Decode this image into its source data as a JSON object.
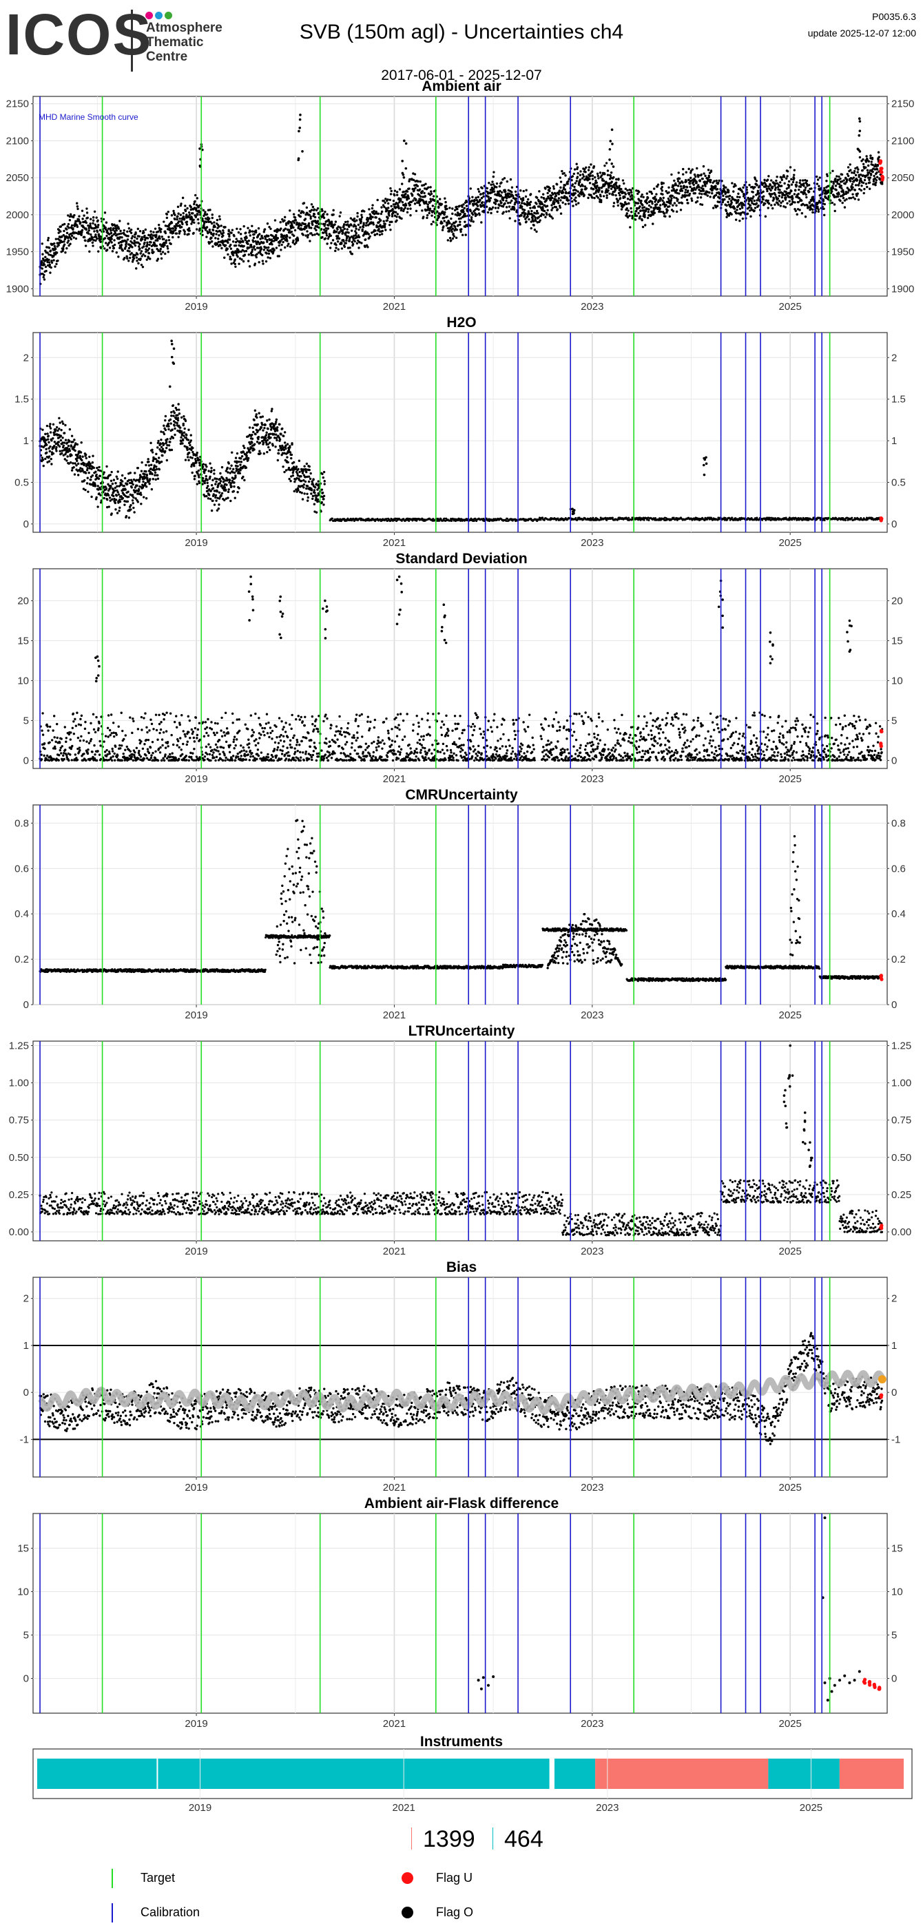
{
  "header": {
    "logo_text": "ICOS",
    "logo_lines": [
      "Atmosphere",
      "Thematic",
      "Centre"
    ],
    "logo_dot_colors": [
      "#e6007e",
      "#1e9bd7",
      "#3aaa35"
    ],
    "title": "SVB  (150m agl) - Uncertainties ch4",
    "subtitle": "2017-06-01 - 2025-12-07",
    "version": "P0035.6.3",
    "update": "update  2025-12-07 12:00"
  },
  "colors": {
    "target_line": "#22dd22",
    "calibration_line": "#1a1acc",
    "flag_u": "#ff1111",
    "flag_o": "#000000",
    "smooth_curve": "#b4b4b4",
    "smooth_end": "#f0a020",
    "instrument_a": "#00bfc4",
    "instrument_b": "#f8766d"
  },
  "chart_data": [
    {
      "type": "scatter",
      "title": "Ambient air",
      "annotation": "MHD Marine Smooth curve",
      "xlabel": "",
      "ylabel": "",
      "x_ticks": [
        "2019",
        "2021",
        "2023",
        "2025"
      ],
      "y_ticks": [
        1900,
        1950,
        2000,
        2050,
        2100,
        2150
      ],
      "ylim": [
        1890,
        2160
      ],
      "series_points": [
        [
          2017.42,
          1930
        ],
        [
          2017.6,
          1960
        ],
        [
          2017.8,
          1990
        ],
        [
          2018.0,
          1975
        ],
        [
          2018.2,
          1970
        ],
        [
          2018.4,
          1955
        ],
        [
          2018.6,
          1960
        ],
        [
          2018.8,
          1990
        ],
        [
          2019.0,
          2000
        ],
        [
          2019.2,
          1975
        ],
        [
          2019.4,
          1955
        ],
        [
          2019.6,
          1960
        ],
        [
          2019.8,
          1965
        ],
        [
          2020.0,
          1985
        ],
        [
          2020.2,
          1995
        ],
        [
          2020.4,
          1975
        ],
        [
          2020.6,
          1975
        ],
        [
          2020.8,
          1990
        ],
        [
          2021.0,
          2010
        ],
        [
          2021.2,
          2030
        ],
        [
          2021.4,
          2010
        ],
        [
          2021.6,
          1990
        ],
        [
          2021.8,
          2010
        ],
        [
          2022.0,
          2030
        ],
        [
          2022.2,
          2020
        ],
        [
          2022.4,
          2000
        ],
        [
          2022.6,
          2020
        ],
        [
          2022.8,
          2040
        ],
        [
          2023.0,
          2045
        ],
        [
          2023.2,
          2040
        ],
        [
          2023.4,
          2010
        ],
        [
          2023.6,
          2010
        ],
        [
          2023.8,
          2025
        ],
        [
          2024.0,
          2040
        ],
        [
          2024.2,
          2040
        ],
        [
          2024.4,
          2015
        ],
        [
          2024.6,
          2020
        ],
        [
          2024.8,
          2030
        ],
        [
          2025.0,
          2035
        ],
        [
          2025.2,
          2020
        ],
        [
          2025.4,
          2030
        ],
        [
          2025.6,
          2040
        ],
        [
          2025.8,
          2060
        ],
        [
          2025.93,
          2055
        ]
      ],
      "series_spread": 45,
      "outliers": [
        [
          2020.05,
          2135
        ],
        [
          2019.05,
          2095
        ],
        [
          2021.1,
          2100
        ],
        [
          2025.7,
          2130
        ],
        [
          2023.2,
          2115
        ]
      ],
      "flag_u_points": [
        [
          2025.92,
          2060
        ],
        [
          2025.93,
          2050
        ],
        [
          2025.91,
          2070
        ]
      ]
    },
    {
      "type": "scatter",
      "title": "H2O",
      "xlabel": "",
      "ylabel": "",
      "x_ticks": [
        "2019",
        "2021",
        "2023",
        "2025"
      ],
      "y_ticks": [
        0.0,
        0.5,
        1.0,
        1.5,
        2.0
      ],
      "ylim": [
        -0.1,
        2.3
      ],
      "series_points": [
        [
          2017.42,
          0.9
        ],
        [
          2017.6,
          1.0
        ],
        [
          2017.8,
          0.8
        ],
        [
          2018.0,
          0.5
        ],
        [
          2018.2,
          0.35
        ],
        [
          2018.4,
          0.4
        ],
        [
          2018.6,
          0.8
        ],
        [
          2018.8,
          1.3
        ],
        [
          2019.0,
          0.7
        ],
        [
          2019.2,
          0.4
        ],
        [
          2019.4,
          0.6
        ],
        [
          2019.6,
          1.1
        ],
        [
          2019.8,
          1.1
        ],
        [
          2020.0,
          0.6
        ],
        [
          2020.2,
          0.4
        ],
        [
          2020.3,
          0.35
        ]
      ],
      "series_spread": 0.45,
      "low_segments": [
        [
          2020.35,
          2021.35,
          0.05
        ],
        [
          2021.35,
          2022.45,
          0.05
        ],
        [
          2022.45,
          2025.93,
          0.06
        ]
      ],
      "outliers": [
        [
          2018.75,
          2.2
        ],
        [
          2024.15,
          0.8
        ],
        [
          2022.8,
          0.18
        ]
      ],
      "flag_u_points": [
        [
          2025.92,
          0.05
        ]
      ]
    },
    {
      "type": "scatter",
      "title": "Standard Deviation",
      "xlabel": "",
      "ylabel": "",
      "x_ticks": [
        "2019",
        "2021",
        "2023",
        "2025"
      ],
      "y_ticks": [
        0,
        5,
        10,
        15,
        20
      ],
      "ylim": [
        -1,
        24
      ],
      "baseline": 0.8,
      "series_spread": 6,
      "outliers": [
        [
          2019.55,
          23
        ],
        [
          2021.05,
          23
        ],
        [
          2019.85,
          20.5
        ],
        [
          2020.3,
          20
        ],
        [
          2025.6,
          17.5
        ],
        [
          2024.3,
          22.5
        ],
        [
          2018.0,
          13
        ],
        [
          2021.5,
          19.5
        ],
        [
          2024.8,
          16
        ]
      ],
      "flag_u_points": [
        [
          2025.92,
          2
        ],
        [
          2025.92,
          3.5
        ]
      ]
    },
    {
      "type": "scatter",
      "title": "CMRUncertainty",
      "xlabel": "",
      "ylabel": "",
      "x_ticks": [
        "2019",
        "2021",
        "2023",
        "2025"
      ],
      "y_ticks": [
        0.0,
        0.2,
        0.4,
        0.6,
        0.8
      ],
      "ylim": [
        0.0,
        0.88
      ],
      "segments": [
        [
          2017.42,
          2019.7,
          0.15
        ],
        [
          2019.7,
          2020.35,
          0.3
        ],
        [
          2020.35,
          2022.1,
          0.165
        ],
        [
          2022.1,
          2022.5,
          0.17
        ],
        [
          2022.5,
          2023.35,
          0.33
        ],
        [
          2023.35,
          2024.35,
          0.11
        ],
        [
          2024.35,
          2024.9,
          0.165
        ],
        [
          2024.9,
          2025.3,
          0.165
        ],
        [
          2025.3,
          2025.93,
          0.12
        ]
      ],
      "bumps": [
        [
          2019.8,
          2020.3,
          0.85
        ],
        [
          2022.55,
          2023.3,
          0.4
        ],
        [
          2025.0,
          2025.1,
          0.77
        ]
      ],
      "flag_u_points": [
        [
          2025.92,
          0.12
        ]
      ]
    },
    {
      "type": "scatter",
      "title": "LTRUncertainty",
      "xlabel": "",
      "ylabel": "",
      "x_ticks": [
        "2019",
        "2021",
        "2023",
        "2025"
      ],
      "y_ticks": [
        "0.00",
        "0.25",
        "0.50",
        "0.75",
        "1.00",
        "1.25"
      ],
      "ylim": [
        -0.06,
        1.28
      ],
      "segments": [
        [
          2017.42,
          2022.7,
          0.17
        ],
        [
          2022.7,
          2024.3,
          0.03
        ],
        [
          2024.3,
          2025.5,
          0.25
        ],
        [
          2025.5,
          2025.93,
          0.05
        ]
      ],
      "series_spread": 0.15,
      "outliers": [
        [
          2025.0,
          1.25
        ],
        [
          2024.95,
          0.95
        ],
        [
          2025.2,
          0.6
        ],
        [
          2025.15,
          0.8
        ]
      ],
      "flag_u_points": [
        [
          2025.92,
          0.03
        ]
      ]
    },
    {
      "type": "line",
      "title": "Bias",
      "xlabel": "",
      "ylabel": "",
      "x_ticks": [
        "2019",
        "2021",
        "2023",
        "2025"
      ],
      "y_ticks": [
        -1,
        0,
        1,
        2
      ],
      "ylim": [
        -1.8,
        2.45
      ],
      "hlines": [
        -1,
        1
      ],
      "smooth_points": [
        [
          2017.42,
          -0.25
        ],
        [
          2018.0,
          -0.05
        ],
        [
          2018.5,
          -0.2
        ],
        [
          2019.0,
          -0.1
        ],
        [
          2019.5,
          -0.25
        ],
        [
          2020.0,
          -0.1
        ],
        [
          2020.5,
          -0.25
        ],
        [
          2021.0,
          -0.1
        ],
        [
          2021.5,
          -0.25
        ],
        [
          2022.0,
          -0.1
        ],
        [
          2022.5,
          -0.3
        ],
        [
          2023.0,
          -0.1
        ],
        [
          2023.5,
          -0.05
        ],
        [
          2024.0,
          0.0
        ],
        [
          2024.5,
          0.05
        ],
        [
          2025.0,
          0.2
        ],
        [
          2025.5,
          0.3
        ],
        [
          2025.93,
          0.28
        ]
      ],
      "bias_points": [
        [
          2017.42,
          -0.3
        ],
        [
          2017.7,
          -0.5
        ],
        [
          2018.0,
          -0.2
        ],
        [
          2018.3,
          -0.4
        ],
        [
          2018.6,
          -0.1
        ],
        [
          2018.9,
          -0.5
        ],
        [
          2019.2,
          -0.3
        ],
        [
          2019.5,
          -0.2
        ],
        [
          2019.8,
          -0.4
        ],
        [
          2020.1,
          -0.2
        ],
        [
          2020.4,
          -0.3
        ],
        [
          2020.7,
          -0.2
        ],
        [
          2021.0,
          -0.4
        ],
        [
          2021.3,
          -0.3
        ],
        [
          2021.6,
          -0.1
        ],
        [
          2021.9,
          -0.3
        ],
        [
          2022.2,
          0.0
        ],
        [
          2022.5,
          -0.4
        ],
        [
          2022.8,
          -0.5
        ],
        [
          2023.1,
          -0.2
        ],
        [
          2023.4,
          -0.2
        ],
        [
          2023.7,
          -0.2
        ],
        [
          2024.0,
          -0.25
        ],
        [
          2024.3,
          -0.2
        ],
        [
          2024.6,
          -0.3
        ],
        [
          2024.8,
          -0.8
        ],
        [
          2025.0,
          0.3
        ],
        [
          2025.2,
          1.0
        ],
        [
          2025.4,
          -0.1
        ],
        [
          2025.7,
          0.0
        ],
        [
          2025.93,
          -0.05
        ]
      ],
      "series_spread": 0.7,
      "smooth_end_point": [
        2025.93,
        0.28
      ],
      "flag_u_points": [
        [
          2025.92,
          -0.08
        ]
      ]
    },
    {
      "type": "scatter",
      "title": "Ambient air-Flask difference",
      "xlabel": "",
      "ylabel": "",
      "x_ticks": [
        "2019",
        "2021",
        "2023",
        "2025"
      ],
      "y_ticks": [
        0,
        5,
        10,
        15
      ],
      "ylim": [
        -4,
        19
      ],
      "points": [
        [
          2021.85,
          -0.2
        ],
        [
          2021.9,
          0.1
        ],
        [
          2021.95,
          -0.8
        ],
        [
          2022.0,
          0.2
        ],
        [
          2021.88,
          -1.2
        ],
        [
          2025.35,
          -0.5
        ],
        [
          2025.4,
          0.0
        ],
        [
          2025.45,
          -0.8
        ],
        [
          2025.5,
          -0.2
        ],
        [
          2025.55,
          0.3
        ],
        [
          2025.6,
          -0.5
        ],
        [
          2025.65,
          -0.2
        ],
        [
          2025.7,
          0.8
        ],
        [
          2025.35,
          18.5
        ],
        [
          2025.33,
          9.3
        ],
        [
          2025.38,
          -2.5
        ],
        [
          2025.42,
          -1.5
        ]
      ],
      "flag_u_points": [
        [
          2025.75,
          -0.3
        ],
        [
          2025.8,
          -0.6
        ],
        [
          2025.85,
          -0.9
        ],
        [
          2025.9,
          -1.0
        ]
      ]
    }
  ],
  "shared_vlines": {
    "target_years": [
      2018.05,
      2019.05,
      2020.25,
      2021.42,
      2023.42,
      2025.4
    ],
    "calibration_years": [
      2017.42,
      2021.75,
      2021.92,
      2022.25,
      2022.78,
      2024.3,
      2024.55,
      2024.7,
      2025.25,
      2025.32
    ]
  },
  "instruments": {
    "title": "Instruments",
    "x_ticks": [
      "2019",
      "2021",
      "2023",
      "2025"
    ],
    "bars": [
      {
        "start": 2017.42,
        "end": 2022.45,
        "color_key": "instrument_a"
      },
      {
        "start": 2022.5,
        "end": 2022.9,
        "color_key": "instrument_a"
      },
      {
        "start": 2022.9,
        "end": 2024.6,
        "color_key": "instrument_b"
      },
      {
        "start": 2024.6,
        "end": 2025.3,
        "color_key": "instrument_a"
      },
      {
        "start": 2025.3,
        "end": 2025.93,
        "color_key": "instrument_b"
      }
    ],
    "bar_dividers": [
      2018.6
    ]
  },
  "counts": {
    "a_label": "1399",
    "b_label": "464"
  },
  "legend": {
    "target": "Target",
    "calibration": "Calibration",
    "flag_u": "Flag U",
    "flag_o": "Flag O"
  }
}
